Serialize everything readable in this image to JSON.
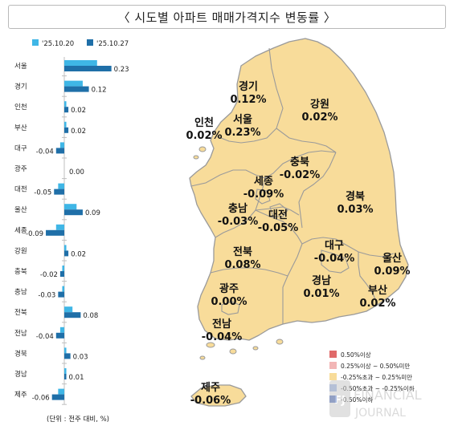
{
  "title": "〈 시도별 아파트 매매가격지수 변동률 〉",
  "unit_note": "(단위 : 전주 대비, %)",
  "colors": {
    "series_prev": "#3fb6e6",
    "series_curr": "#1f6fa8",
    "map_fill": "#f8dc9a",
    "map_stroke": "#9a9a9a",
    "legend_high": "#e06a6a",
    "legend_mid": "#f2b6b6",
    "legend_flat": "#f8dc9a",
    "legend_low": "#9db7e6",
    "legend_lowest": "#4f6fc0"
  },
  "chart_data": {
    "type": "bar",
    "orientation": "horizontal",
    "categories": [
      "서울",
      "경기",
      "인천",
      "부산",
      "대구",
      "광주",
      "대전",
      "울산",
      "세종",
      "강원",
      "충북",
      "충남",
      "전북",
      "전남",
      "경북",
      "경남",
      "제주"
    ],
    "series": [
      {
        "name": "'25.10.20",
        "values": [
          0.16,
          0.09,
          0.01,
          0.01,
          -0.02,
          0.0,
          -0.03,
          0.06,
          -0.04,
          0.01,
          -0.01,
          -0.01,
          0.04,
          -0.02,
          0.01,
          0.01,
          -0.03
        ]
      },
      {
        "name": "'25.10.27",
        "values": [
          0.23,
          0.12,
          0.02,
          0.02,
          -0.04,
          0.0,
          -0.05,
          0.09,
          -0.09,
          0.02,
          -0.02,
          -0.03,
          0.08,
          -0.04,
          0.03,
          0.01,
          -0.06
        ]
      }
    ],
    "data_labels": [
      "0.23",
      "0.12",
      "0.02",
      "0.02",
      "-0.04",
      "0.00",
      "-0.05",
      "0.09",
      "-0.09",
      "0.02",
      "-0.02",
      "-0.03",
      "0.08",
      "-0.04",
      "0.03",
      "0.01",
      "-0.06"
    ],
    "legend_placement": "top"
  },
  "map": {
    "regions": [
      {
        "name": "경기",
        "value": "0.12%"
      },
      {
        "name": "강원",
        "value": "0.02%"
      },
      {
        "name": "인천",
        "value": "0.02%"
      },
      {
        "name": "서울",
        "value": "0.23%"
      },
      {
        "name": "충북",
        "value": "-0.02%"
      },
      {
        "name": "세종",
        "value": "-0.09%"
      },
      {
        "name": "경북",
        "value": "0.03%"
      },
      {
        "name": "충남",
        "value": "-0.03%"
      },
      {
        "name": "대전",
        "value": "-0.05%"
      },
      {
        "name": "전북",
        "value": "0.08%"
      },
      {
        "name": "대구",
        "value": "-0.04%"
      },
      {
        "name": "울산",
        "value": "0.09%"
      },
      {
        "name": "광주",
        "value": "0.00%"
      },
      {
        "name": "경남",
        "value": "0.01%"
      },
      {
        "name": "부산",
        "value": "0.02%"
      },
      {
        "name": "전남",
        "value": "-0.04%"
      },
      {
        "name": "제주",
        "value": "-0.06%"
      }
    ],
    "legend": [
      "0.50%이상",
      "0.25%이상 ~ 0.50%미만",
      "-0.25%초과 ~ 0.25%미만",
      "-0.50%초과 ~ -0.25%이하",
      "-0.50%이하"
    ]
  },
  "watermark": {
    "line1": "FINANCIAL",
    "line2": "JOURNAL",
    "mark": "FJ"
  }
}
